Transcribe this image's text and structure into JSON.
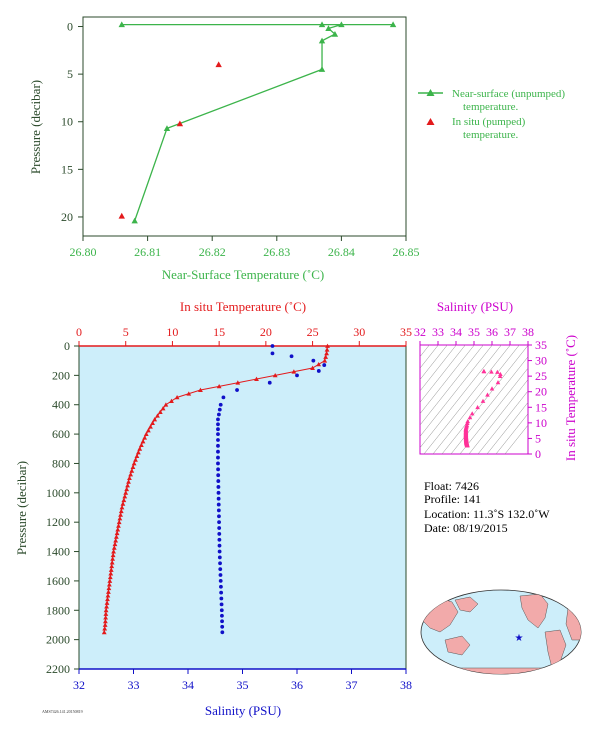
{
  "colors": {
    "green": "#3cb44b",
    "red": "#e31a1c",
    "blue": "#1010c8",
    "magenta": "#cc00cc",
    "pink": "#ff3399",
    "panel_bg": "#cdeefa",
    "axis_dark": "#2b4a2b",
    "land": "#f2aaaa"
  },
  "chart_data": [
    {
      "type": "line",
      "xlabel": "Near-Surface Temperature (˚C)",
      "ylabel": "Pressure (decibar)",
      "xlim": [
        26.8,
        26.85
      ],
      "ylim": [
        22,
        -1
      ],
      "xticks": [
        "26.80",
        "26.81",
        "26.82",
        "26.83",
        "26.84",
        "26.85"
      ],
      "yticks": [
        "0",
        "5",
        "10",
        "15",
        "20"
      ],
      "legend_position": "right",
      "series": [
        {
          "name": "Near-surface (unpumped) temperature.",
          "marker": "triangle",
          "points": [
            [
              26.806,
              -0.2
            ],
            [
              26.837,
              -0.2
            ],
            [
              26.848,
              -0.2
            ],
            [
              26.84,
              -0.2
            ],
            [
              26.838,
              0.2
            ],
            [
              26.839,
              0.8
            ],
            [
              26.837,
              1.5
            ],
            [
              26.837,
              4.5
            ],
            [
              26.813,
              10.7
            ],
            [
              26.808,
              20.4
            ]
          ]
        },
        {
          "name": "In situ (pumped) temperature.",
          "marker": "triangle",
          "points": [
            [
              26.821,
              4.0
            ],
            [
              26.815,
              10.2
            ],
            [
              26.806,
              19.9
            ]
          ]
        }
      ]
    },
    {
      "type": "scatter",
      "title_top": "In situ Temperature (˚C)",
      "xlabel": "Salinity (PSU)",
      "ylabel": "Pressure (decibar)",
      "temp_lim": [
        0,
        35
      ],
      "sal_lim": [
        32,
        38
      ],
      "ylim": [
        2200,
        0
      ],
      "temp_ticks": [
        "0",
        "5",
        "10",
        "15",
        "20",
        "25",
        "30",
        "35"
      ],
      "sal_ticks": [
        "32",
        "33",
        "34",
        "35",
        "36",
        "37",
        "38"
      ],
      "yticks": [
        "0",
        "200",
        "400",
        "600",
        "800",
        "1000",
        "1200",
        "1400",
        "1600",
        "1800",
        "2000",
        "2200"
      ],
      "series": [
        {
          "name": "In situ Temperature",
          "profile": [
            [
              0,
              26.6
            ],
            [
              50,
              26.5
            ],
            [
              100,
              26.3
            ],
            [
              150,
              25.0
            ],
            [
              200,
              21.0
            ],
            [
              250,
              17.0
            ],
            [
              300,
              13.0
            ],
            [
              350,
              10.5
            ],
            [
              400,
              9.3
            ],
            [
              450,
              8.7
            ],
            [
              500,
              8.1
            ],
            [
              600,
              7.2
            ],
            [
              700,
              6.5
            ],
            [
              800,
              5.9
            ],
            [
              900,
              5.4
            ],
            [
              1000,
              5.0
            ],
            [
              1100,
              4.6
            ],
            [
              1200,
              4.3
            ],
            [
              1300,
              4.0
            ],
            [
              1400,
              3.7
            ],
            [
              1500,
              3.5
            ],
            [
              1600,
              3.3
            ],
            [
              1700,
              3.1
            ],
            [
              1800,
              2.9
            ],
            [
              1900,
              2.8
            ],
            [
              1950,
              2.7
            ]
          ]
        },
        {
          "name": "Salinity",
          "profile": [
            [
              0,
              35.55
            ],
            [
              50,
              35.55
            ],
            [
              70,
              35.9
            ],
            [
              100,
              36.3
            ],
            [
              130,
              36.5
            ],
            [
              170,
              36.4
            ],
            [
              200,
              36.0
            ],
            [
              250,
              35.5
            ],
            [
              300,
              34.9
            ],
            [
              350,
              34.65
            ],
            [
              400,
              34.6
            ],
            [
              500,
              34.55
            ],
            [
              600,
              34.55
            ],
            [
              800,
              34.55
            ],
            [
              1000,
              34.56
            ],
            [
              1200,
              34.57
            ],
            [
              1400,
              34.58
            ],
            [
              1600,
              34.6
            ],
            [
              1800,
              34.62
            ],
            [
              1950,
              34.63
            ]
          ]
        }
      ]
    },
    {
      "type": "scatter",
      "title": "Salinity (PSU)",
      "ylabel": "In situ Temperature (˚C)",
      "sal_lim": [
        32,
        38
      ],
      "temp_lim": [
        0,
        35
      ],
      "sal_ticks": [
        "32",
        "33",
        "34",
        "35",
        "36",
        "37",
        "38"
      ],
      "temp_ticks": [
        "0",
        "5",
        "10",
        "15",
        "20",
        "25",
        "30",
        "35"
      ]
    }
  ],
  "info": {
    "float": "Float:  7426",
    "profile": "Profile:  141",
    "location": "Location:  11.3˚S  132.0˚W",
    "date": "Date:  08/19/2015"
  },
  "footer_code": "AMS7426.141.20150819"
}
